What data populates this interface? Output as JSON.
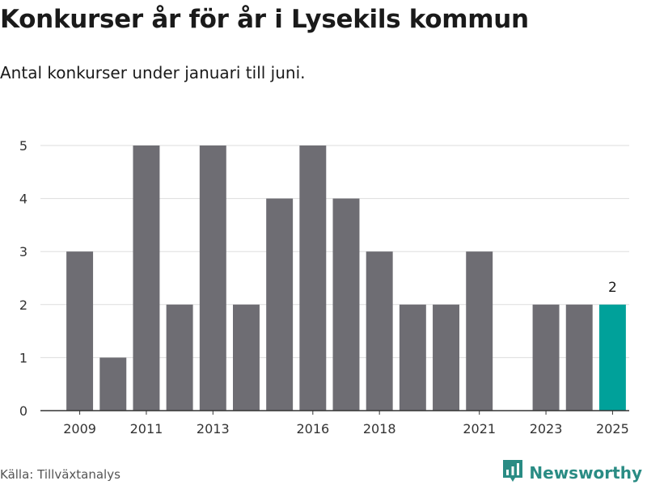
{
  "title": "Konkurser år för år i Lysekils kommun",
  "subtitle": "Antal konkurser under januari till juni.",
  "source": "Källa: Tillväxtanalys",
  "brand": {
    "name": "Newsworthy",
    "icon": "newsworthy-logo-icon"
  },
  "colors": {
    "bar": "#6e6d73",
    "highlight": "#00a19a",
    "grid": "#dddddd",
    "axis": "#333333"
  },
  "chart_data": {
    "type": "bar",
    "x": [
      2009,
      2010,
      2011,
      2012,
      2013,
      2014,
      2015,
      2016,
      2017,
      2018,
      2019,
      2020,
      2021,
      2022,
      2023,
      2024,
      2025
    ],
    "values": [
      3,
      1,
      5,
      2,
      5,
      2,
      4,
      5,
      4,
      3,
      2,
      2,
      3,
      0,
      2,
      2,
      2
    ],
    "x_tick_labels": [
      2009,
      2011,
      2013,
      2016,
      2018,
      2021,
      2023,
      2025
    ],
    "y_ticks": [
      0,
      1,
      2,
      3,
      4,
      5
    ],
    "ylim": [
      0,
      5.5
    ],
    "highlight": {
      "x": 2025,
      "label": "2"
    },
    "grid": "horizontal",
    "legend": "none"
  }
}
